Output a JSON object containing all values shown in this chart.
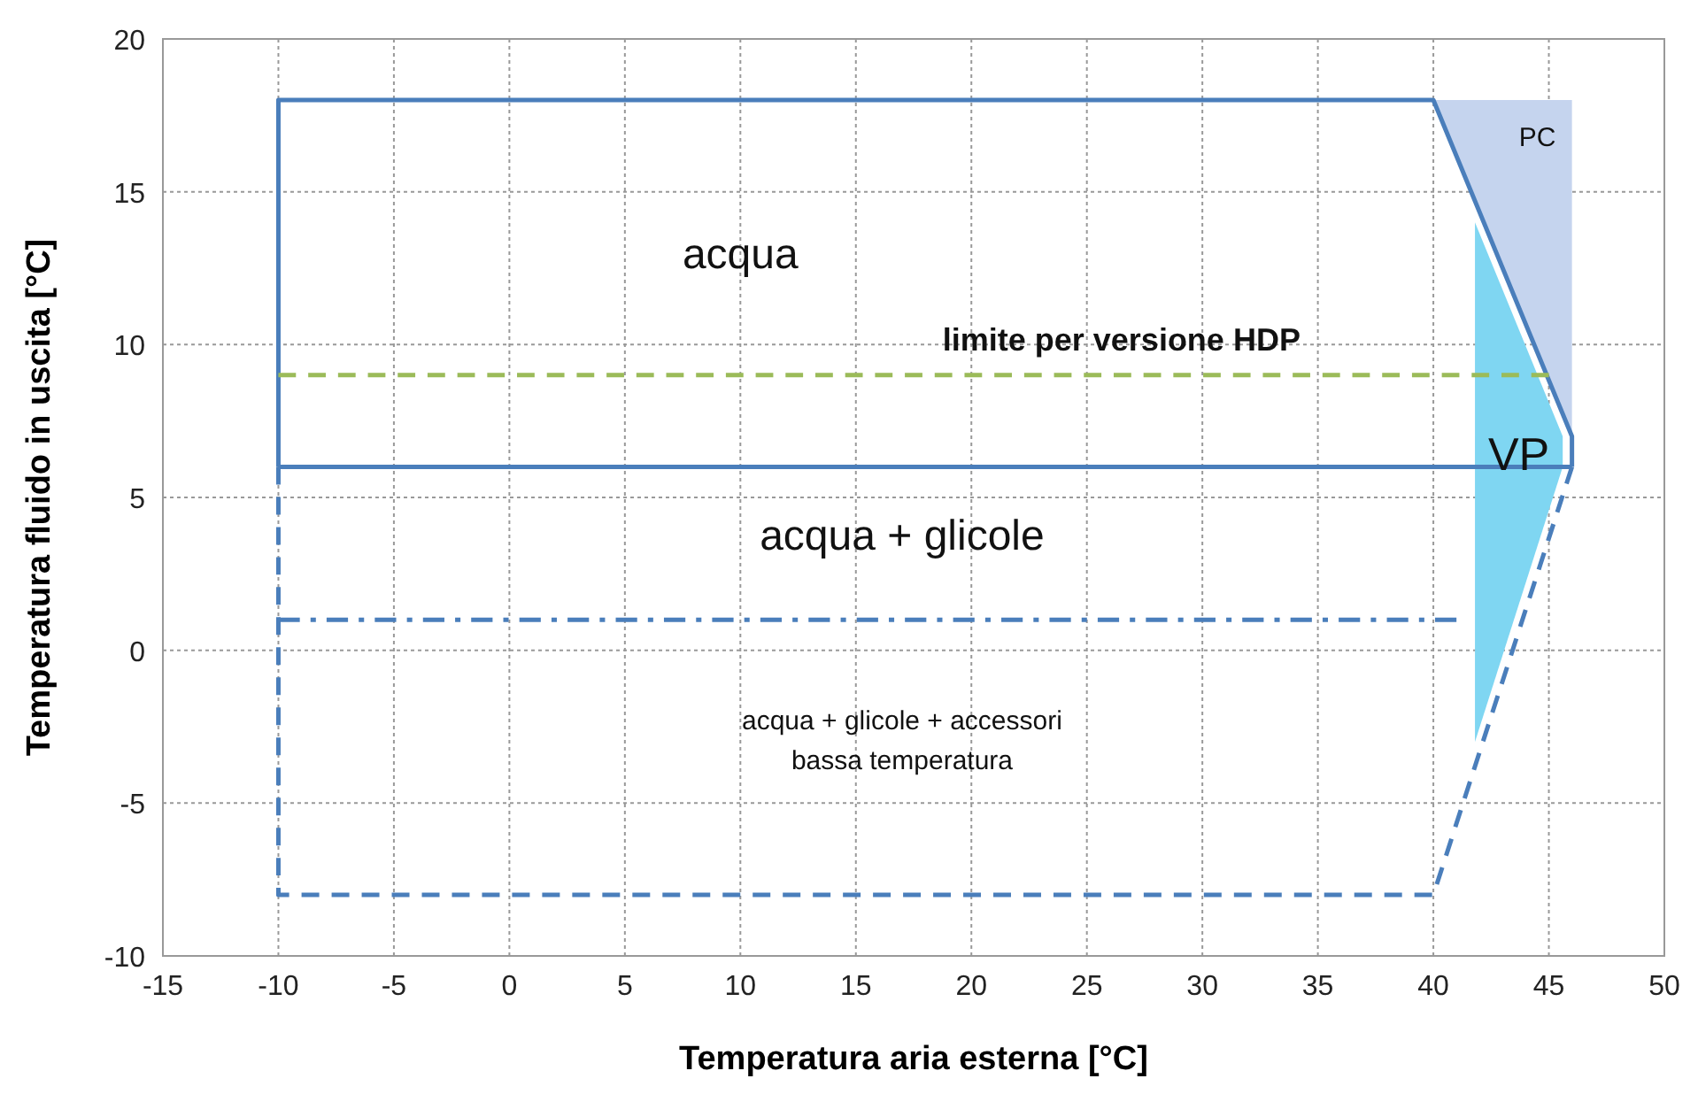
{
  "chart_data": {
    "type": "line",
    "xlabel": "Temperatura aria esterna [°C]",
    "ylabel": "Temperatura fluido in uscita [°C]",
    "xlim": [
      -15,
      50
    ],
    "xticks": [
      -15,
      -10,
      -5,
      0,
      5,
      10,
      15,
      20,
      25,
      30,
      35,
      40,
      45,
      50
    ],
    "ylim": [
      -10,
      20
    ],
    "yticks": [
      -10,
      -5,
      0,
      5,
      10,
      15,
      20
    ],
    "grid": true,
    "series": [
      {
        "type": "area",
        "color": "#c5d4ee",
        "x": [
          40,
          46,
          46,
          40
        ],
        "values": [
          18,
          18,
          7,
          18
        ]
      },
      {
        "type": "area",
        "color": "#7fd6f2",
        "x": [
          41.8,
          45.6,
          45.6,
          41.8,
          41.8
        ],
        "values": [
          14,
          7,
          6,
          -3,
          14
        ]
      },
      {
        "color": "#4a7ebb",
        "line_style": "solid",
        "x": [
          -10,
          -10,
          40,
          46,
          46
        ],
        "values": [
          6,
          18,
          18,
          7,
          6
        ]
      },
      {
        "color": "#4a7ebb",
        "line_style": "solid",
        "x": [
          -10,
          46
        ],
        "values": [
          6,
          6
        ]
      },
      {
        "color": "#4a7ebb",
        "line_style": "dashed",
        "x": [
          -10,
          -10,
          40,
          46
        ],
        "values": [
          6,
          -8,
          -8,
          6
        ]
      },
      {
        "color": "#4a7ebb",
        "line_style": "dashdot",
        "x": [
          -10,
          41
        ],
        "values": [
          1,
          1
        ]
      },
      {
        "color": "#9bbb59",
        "line_style": "dashed",
        "x": [
          -10,
          45
        ],
        "values": [
          9,
          9
        ]
      }
    ],
    "annotations": [
      "acqua",
      "limite per versione HDP",
      "VP",
      "PC",
      "acqua + glicole",
      "acqua + glicole + accessori bassa temperatura"
    ]
  }
}
